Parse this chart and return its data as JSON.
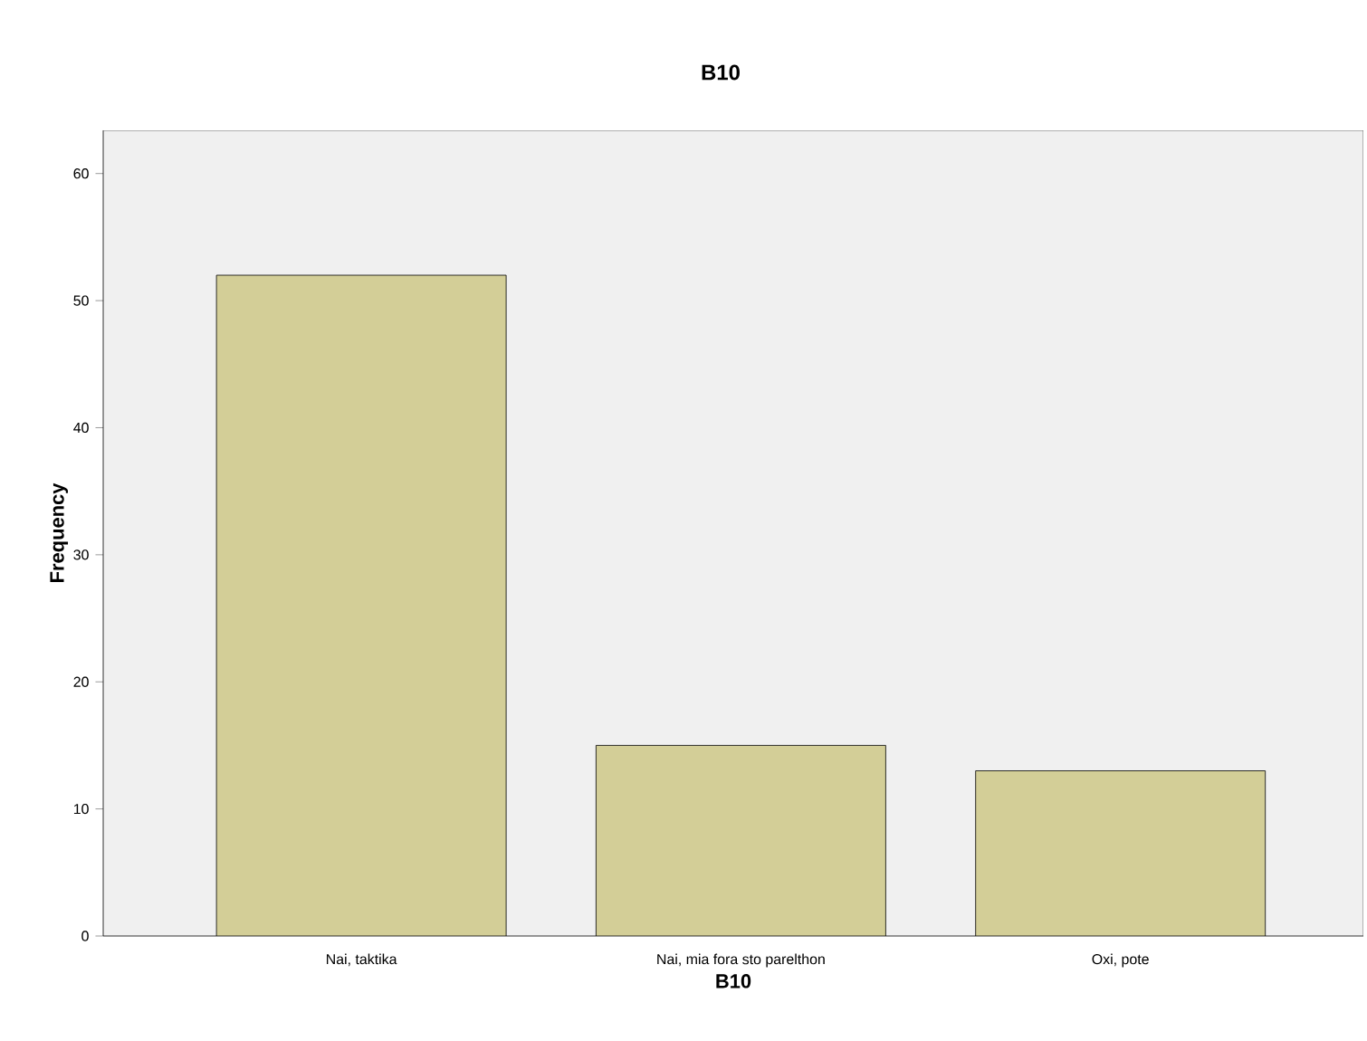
{
  "chart_data": {
    "type": "bar",
    "title": "B10",
    "xlabel": "B10",
    "ylabel": "Frequency",
    "categories": [
      "Nai, taktika",
      "Nai, mia fora sto parelthon",
      "Oxi, pote"
    ],
    "values": [
      52,
      15,
      13
    ],
    "color": "#d3ce97",
    "ylim": [
      0,
      63.4
    ],
    "yticks": [
      0,
      10,
      20,
      30,
      40,
      50,
      60
    ],
    "grid": false
  }
}
